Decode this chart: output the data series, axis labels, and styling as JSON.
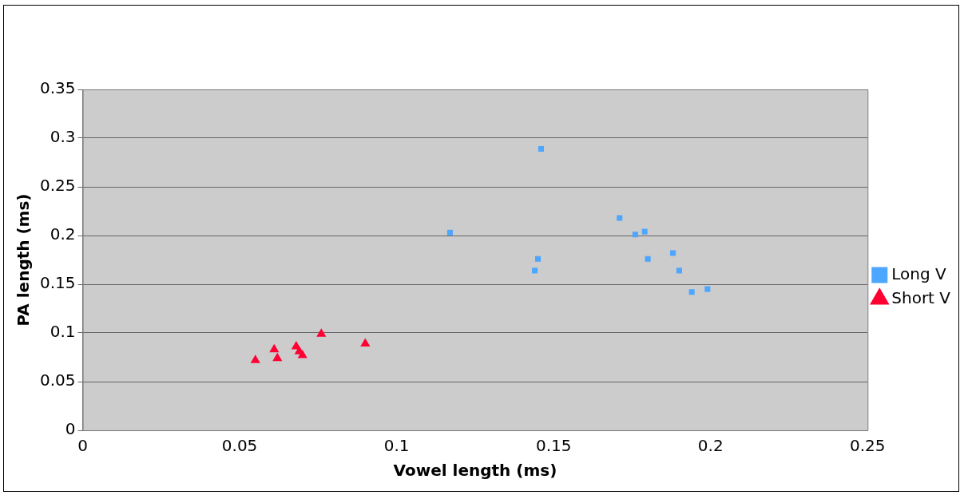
{
  "chart_data": {
    "type": "scatter",
    "xlabel": "Vowel length (ms)",
    "ylabel": "PA length (ms)",
    "xlim": [
      0,
      0.25
    ],
    "xticks": [
      0,
      0.05,
      0.1,
      0.15,
      0.2,
      0.25
    ],
    "ylim": [
      0,
      0.35
    ],
    "yticks": [
      0,
      0.05,
      0.1,
      0.15,
      0.2,
      0.25,
      0.3,
      0.35
    ],
    "grid": "y",
    "legend": "right",
    "series": [
      {
        "name": "Long V",
        "color": "#4da6ff",
        "marker": "square",
        "x": [
          0.117,
          0.146,
          0.145,
          0.144,
          0.171,
          0.176,
          0.179,
          0.18,
          0.188,
          0.19,
          0.194,
          0.199
        ],
        "values": [
          0.203,
          0.289,
          0.176,
          0.164,
          0.218,
          0.201,
          0.204,
          0.176,
          0.182,
          0.164,
          0.142,
          0.145
        ]
      },
      {
        "name": "Short V",
        "color": "#ff0033",
        "marker": "triangle",
        "x": [
          0.055,
          0.061,
          0.062,
          0.068,
          0.069,
          0.07,
          0.076,
          0.09
        ],
        "values": [
          0.072,
          0.083,
          0.074,
          0.086,
          0.081,
          0.077,
          0.099,
          0.089
        ]
      }
    ]
  }
}
